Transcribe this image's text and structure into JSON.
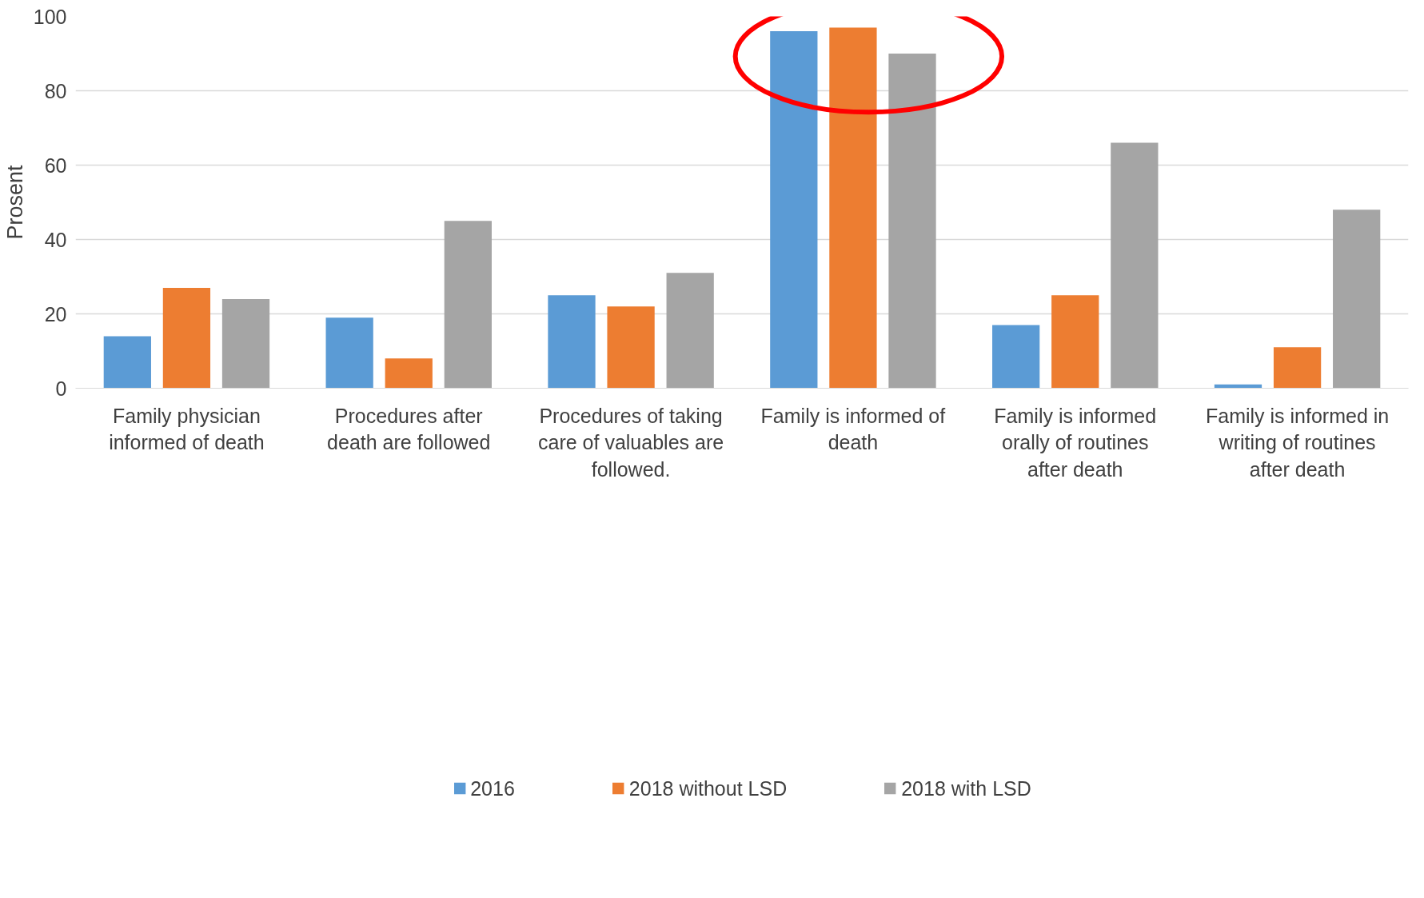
{
  "chart_data": {
    "type": "bar",
    "ylabel": "Prosent",
    "categories": [
      "Family physician informed of death",
      "Procedures after death are followed",
      "Procedures of taking care of valuables are followed.",
      "Family is informed of death",
      "Family is informed orally of routines after death",
      "Family is informed in writing of routines after death"
    ],
    "series": [
      {
        "name": "2016",
        "color": "#5b9bd5",
        "values": [
          14,
          19,
          25,
          96,
          17,
          1
        ]
      },
      {
        "name": "2018 without LSD",
        "color": "#ed7d31",
        "values": [
          27,
          8,
          22,
          97,
          25,
          11
        ]
      },
      {
        "name": "2018 with LSD",
        "color": "#a5a5a5",
        "values": [
          24,
          45,
          31,
          90,
          66,
          48
        ]
      }
    ],
    "ylim": [
      0,
      100
    ],
    "yticks": [
      0,
      20,
      40,
      60,
      80,
      100
    ],
    "grid": "y",
    "legend": "bottom"
  }
}
